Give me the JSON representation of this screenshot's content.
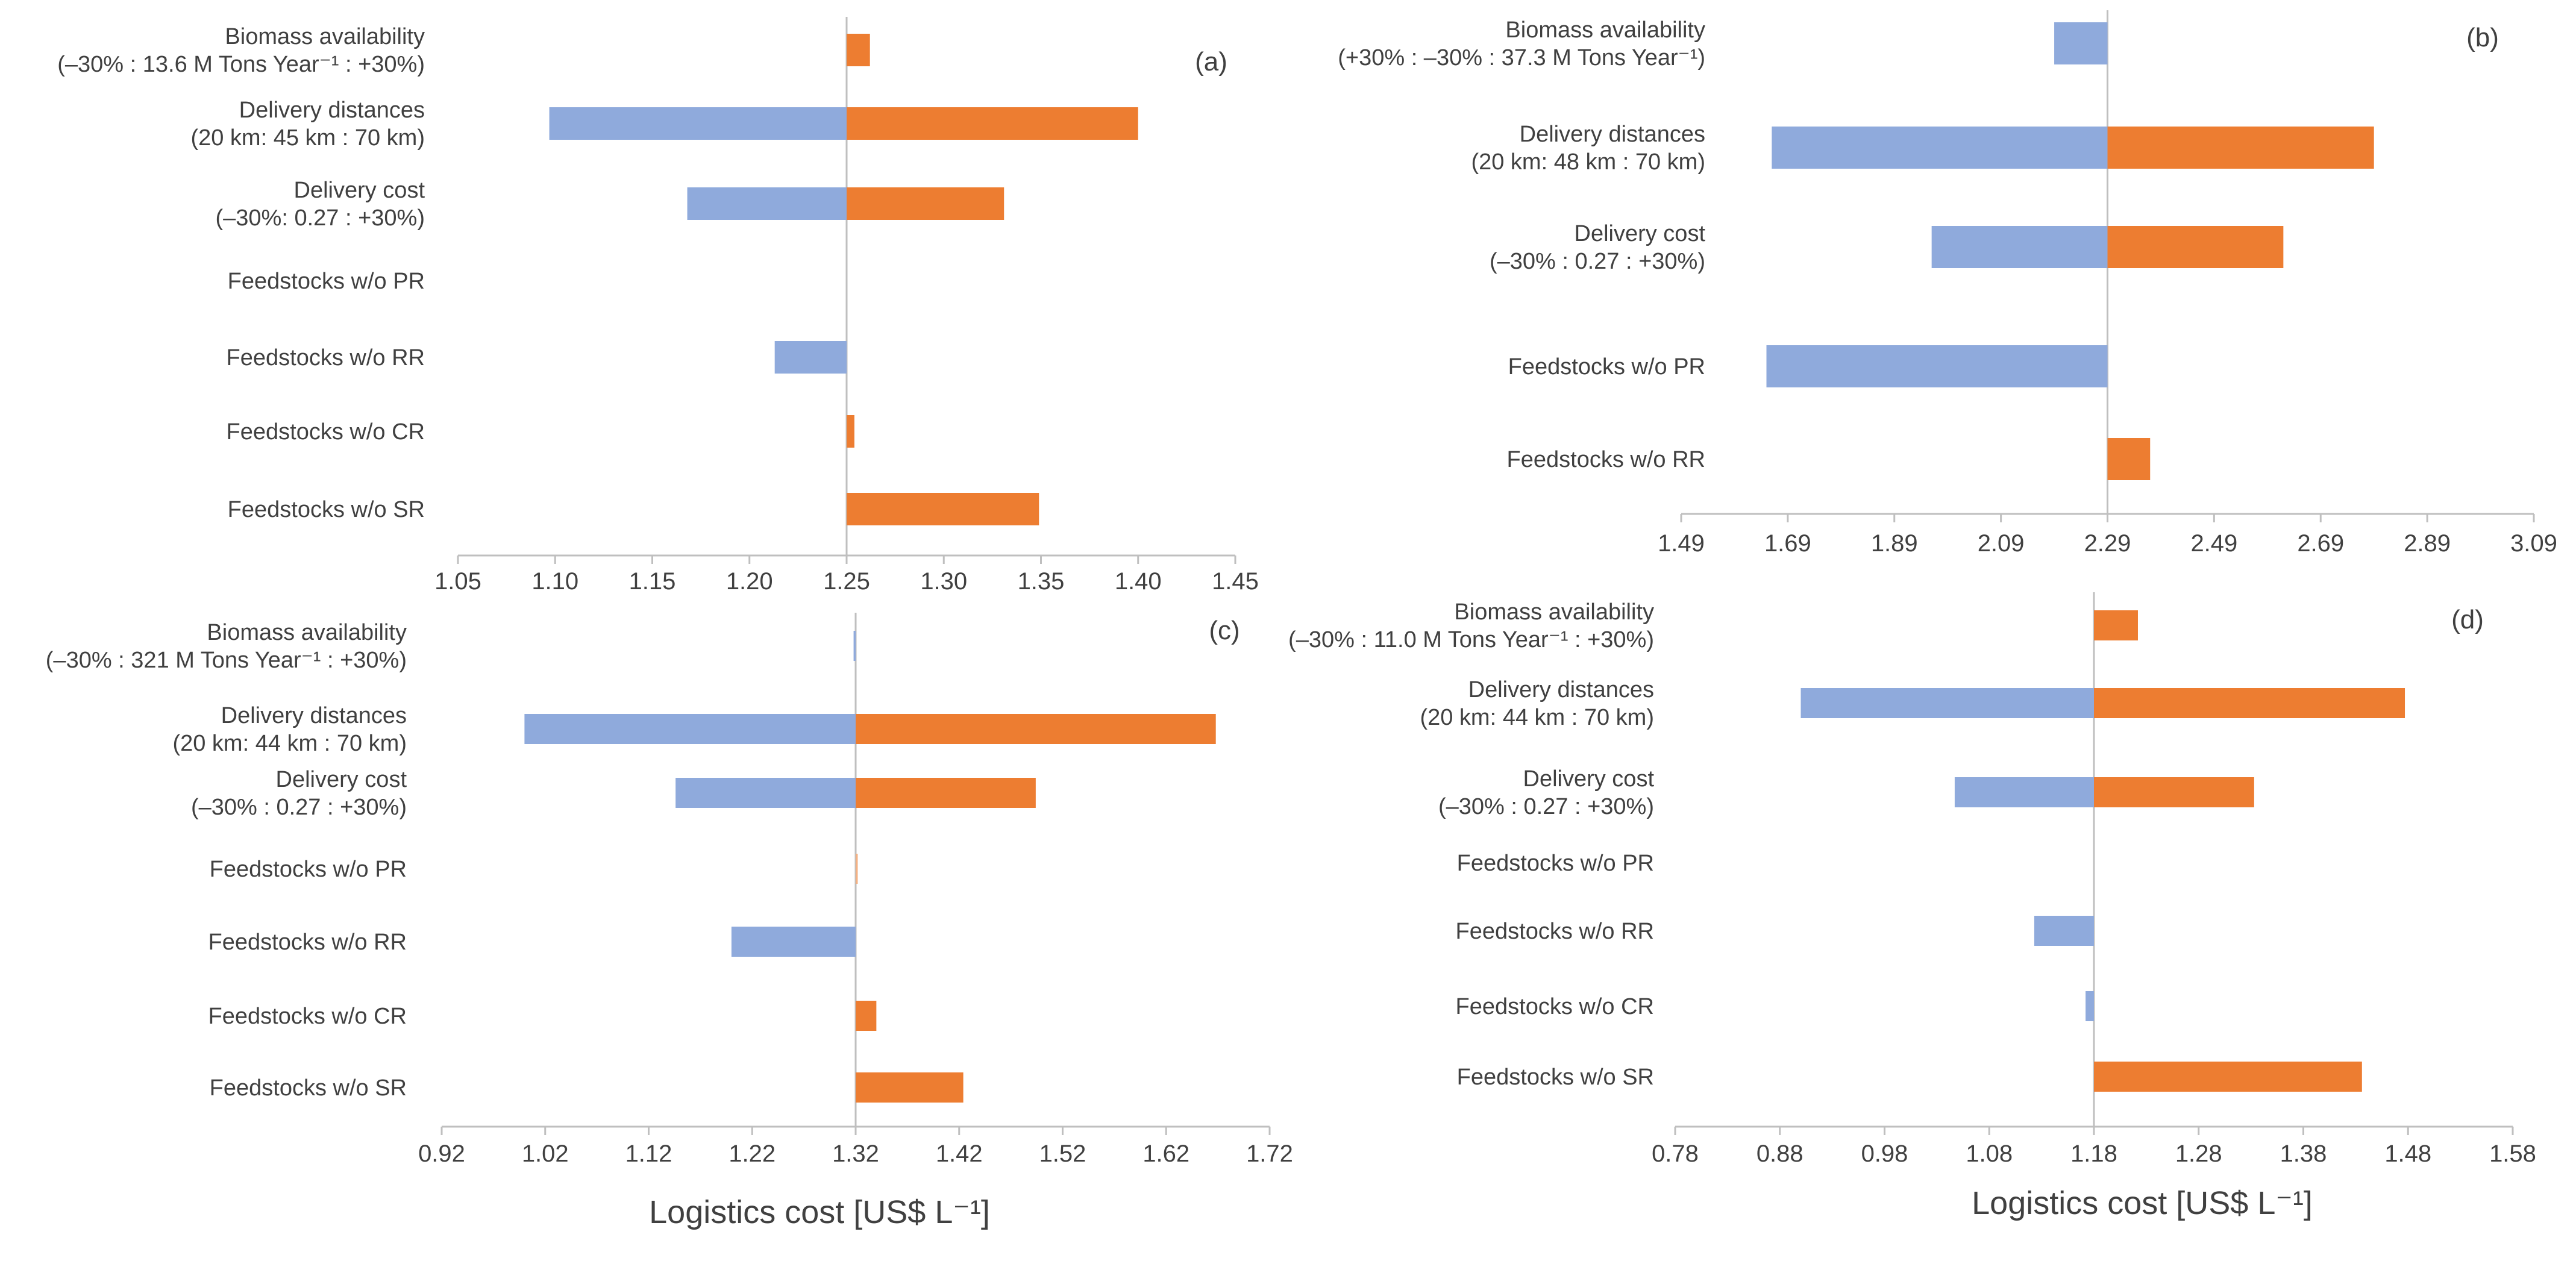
{
  "colors": {
    "low": "#8faadc",
    "high": "#ed7d31",
    "axis": "#bfbfbf",
    "text": "#404040"
  },
  "shared": {
    "xlabel": "Logistics cost [US$ L⁻¹]"
  },
  "chart_data": [
    {
      "type": "bar",
      "orientation": "horizontal-tornado",
      "panel": "(a)",
      "base": 1.25,
      "xlim": [
        1.05,
        1.45
      ],
      "ticks": [
        "1.05",
        "1.10",
        "1.15",
        "1.20",
        "1.25",
        "1.30",
        "1.35",
        "1.40",
        "1.45"
      ],
      "categories": [
        {
          "lines": [
            "Biomass availability",
            "(–30% : 13.6 M Tons Year⁻¹ : +30%)"
          ],
          "low": null,
          "high": 1.262
        },
        {
          "lines": [
            "Delivery distances",
            "(20 km:  45 km  : 70 km)"
          ],
          "low": 1.097,
          "high": 1.4
        },
        {
          "lines": [
            "Delivery cost",
            "(–30%: 0.27 : +30%)"
          ],
          "low": 1.168,
          "high": 1.331
        },
        {
          "lines": [
            "Feedstocks w/o PR"
          ],
          "low": null,
          "high": null
        },
        {
          "lines": [
            "Feedstocks w/o RR"
          ],
          "low": 1.213,
          "high": null
        },
        {
          "lines": [
            "Feedstocks w/o CR"
          ],
          "low": null,
          "high": 1.254
        },
        {
          "lines": [
            "Feedstocks w/o SR"
          ],
          "low": null,
          "high": 1.349
        }
      ]
    },
    {
      "type": "bar",
      "orientation": "horizontal-tornado",
      "panel": "(b)",
      "base": 2.29,
      "xlim": [
        1.49,
        3.09
      ],
      "ticks": [
        "1.49",
        "1.69",
        "1.89",
        "2.09",
        "2.29",
        "2.49",
        "2.69",
        "2.89",
        "3.09"
      ],
      "categories": [
        {
          "lines": [
            "Biomass availability",
            "(+30% : –30% : 37.3 M Tons Year⁻¹)"
          ],
          "low": 2.19,
          "high": null
        },
        {
          "lines": [
            "Delivery distances",
            "(20 km:  48 km  : 70 km)"
          ],
          "low": 1.66,
          "high": 2.79
        },
        {
          "lines": [
            "Delivery cost",
            "(–30% : 0.27 : +30%)"
          ],
          "low": 1.96,
          "high": 2.62
        },
        {
          "lines": [
            "Feedstocks w/o PR"
          ],
          "low": 1.65,
          "high": null
        },
        {
          "lines": [
            "Feedstocks w/o RR"
          ],
          "low": null,
          "high": 2.37
        }
      ]
    },
    {
      "type": "bar",
      "orientation": "horizontal-tornado",
      "panel": "(c)",
      "base": 1.32,
      "xlim": [
        0.92,
        1.72
      ],
      "ticks": [
        "0.92",
        "1.02",
        "1.12",
        "1.22",
        "1.32",
        "1.42",
        "1.52",
        "1.62",
        "1.72"
      ],
      "categories": [
        {
          "lines": [
            "Biomass availability",
            "(–30% : 321 M Tons Year⁻¹ : +30%)"
          ],
          "low": 1.318,
          "high": null
        },
        {
          "lines": [
            "Delivery distances",
            "(20 km:  44 km  : 70 km)"
          ],
          "low": 1.0,
          "high": 1.668
        },
        {
          "lines": [
            "Delivery cost",
            "(–30% : 0.27 : +30%)"
          ],
          "low": 1.146,
          "high": 1.494
        },
        {
          "lines": [
            "Feedstocks w/o PR"
          ],
          "low": null,
          "high": 1.322
        },
        {
          "lines": [
            "Feedstocks w/o RR"
          ],
          "low": 1.2,
          "high": null
        },
        {
          "lines": [
            "Feedstocks w/o CR"
          ],
          "low": null,
          "high": 1.34
        },
        {
          "lines": [
            "Feedstocks w/o SR"
          ],
          "low": null,
          "high": 1.424
        }
      ]
    },
    {
      "type": "bar",
      "orientation": "horizontal-tornado",
      "panel": "(d)",
      "base": 1.18,
      "xlim": [
        0.78,
        1.58
      ],
      "ticks": [
        "0.78",
        "0.88",
        "0.98",
        "1.08",
        "1.18",
        "1.28",
        "1.38",
        "1.48",
        "1.58"
      ],
      "categories": [
        {
          "lines": [
            "Biomass availability",
            "(–30% : 11.0 M Tons Year⁻¹ : +30%)"
          ],
          "low": null,
          "high": 1.222
        },
        {
          "lines": [
            "Delivery distances",
            "(20 km:  44 km  : 70 km)"
          ],
          "low": 0.9,
          "high": 1.477
        },
        {
          "lines": [
            "Delivery cost",
            "(–30% : 0.27 : +30%)"
          ],
          "low": 1.047,
          "high": 1.333
        },
        {
          "lines": [
            "Feedstocks w/o PR"
          ],
          "low": null,
          "high": null
        },
        {
          "lines": [
            "Feedstocks w/o RR"
          ],
          "low": 1.123,
          "high": null
        },
        {
          "lines": [
            "Feedstocks w/o CR"
          ],
          "low": 1.172,
          "high": null
        },
        {
          "lines": [
            "Feedstocks w/o SR"
          ],
          "low": null,
          "high": 1.436
        }
      ]
    }
  ]
}
